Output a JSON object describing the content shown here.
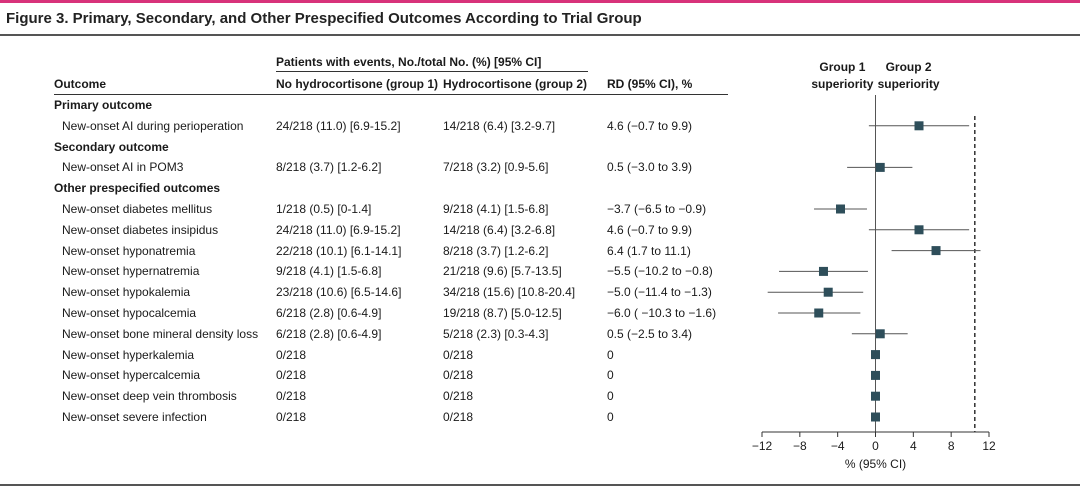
{
  "figure": {
    "title": "Figure 3. Primary, Secondary, and Other Prespecified Outcomes According to Trial Group"
  },
  "table": {
    "spanning_header": "Patients with events, No./total No. (%) [95% CI]",
    "col_outcome": "Outcome",
    "col_group1": "No hydrocortisone (group 1)",
    "col_group2": "Hydrocortisone (group 2)",
    "col_rd": "RD (95% CI), %",
    "sections": [
      {
        "title": "Primary outcome",
        "rows": [
          {
            "outcome": "New-onset AI during perioperation",
            "group1": "24/218 (11.0) [6.9-15.2]",
            "group2": "14/218 (6.4) [3.2-9.7]",
            "rd": "4.6 (−0.7 to 9.9)"
          }
        ]
      },
      {
        "title": "Secondary outcome",
        "rows": [
          {
            "outcome": "New-onset AI in POM3",
            "group1": "8/218 (3.7) [1.2-6.2]",
            "group2": "7/218 (3.2) [0.9-5.6]",
            "rd": "0.5 (−3.0 to 3.9)"
          }
        ]
      },
      {
        "title": "Other prespecified outcomes",
        "rows": [
          {
            "outcome": "New-onset diabetes mellitus",
            "group1": "1/218 (0.5) [0-1.4]",
            "group2": "9/218 (4.1) [1.5-6.8]",
            "rd": "−3.7 (−6.5 to −0.9)"
          },
          {
            "outcome": "New-onset diabetes insipidus",
            "group1": "24/218 (11.0) [6.9-15.2]",
            "group2": "14/218 (6.4) [3.2-6.8]",
            "rd": "4.6 (−0.7 to 9.9)"
          },
          {
            "outcome": "New-onset hyponatremia",
            "group1": "22/218 (10.1) [6.1-14.1]",
            "group2": "8/218 (3.7) [1.2-6.2]",
            "rd": "6.4 (1.7 to 11.1)"
          },
          {
            "outcome": "New-onset hypernatremia",
            "group1": "9/218 (4.1) [1.5-6.8]",
            "group2": "21/218 (9.6) [5.7-13.5]",
            "rd": "−5.5 (−10.2 to −0.8)"
          },
          {
            "outcome": "New-onset hypokalemia",
            "group1": "23/218 (10.6) [6.5-14.6]",
            "group2": "34/218 (15.6) [10.8-20.4]",
            "rd": "−5.0 (−11.4 to −1.3)"
          },
          {
            "outcome": "New-onset hypocalcemia",
            "group1": "6/218 (2.8) [0.6-4.9]",
            "group2": "19/218 (8.7) [5.0-12.5]",
            "rd": "−6.0 ( −10.3 to −1.6)"
          },
          {
            "outcome": "New-onset bone mineral density loss",
            "group1": "6/218 (2.8) [0.6-4.9]",
            "group2": "5/218 (2.3) [0.3-4.3]",
            "rd": "0.5 (−2.5 to 3.4)"
          },
          {
            "outcome": "New-onset hyperkalemia",
            "group1": "0/218",
            "group2": "0/218",
            "rd": "0"
          },
          {
            "outcome": "New-onset hypercalcemia",
            "group1": "0/218",
            "group2": "0/218",
            "rd": "0"
          },
          {
            "outcome": "New-onset deep vein thrombosis",
            "group1": "0/218",
            "group2": "0/218",
            "rd": "0"
          },
          {
            "outcome": "New-onset severe infection",
            "group1": "0/218",
            "group2": "0/218",
            "rd": "0"
          }
        ]
      }
    ]
  },
  "chart_data": {
    "type": "scatter",
    "subtype": "forest-plot",
    "xlabel": "% (95% CI)",
    "xlim": [
      -12,
      12
    ],
    "xticks": [
      -12,
      -8,
      -4,
      0,
      4,
      8,
      12
    ],
    "favors_left": [
      "Group 1",
      "superiority"
    ],
    "favors_right": [
      "Group 2",
      "superiority"
    ],
    "reference_line": 0,
    "dashed_line": 10.5,
    "marker_color": "#2e4e5a",
    "points": [
      {
        "label": "New-onset AI during perioperation",
        "estimate": 4.6,
        "lower": -0.7,
        "upper": 9.9
      },
      {
        "label": "New-onset AI in POM3",
        "estimate": 0.5,
        "lower": -3.0,
        "upper": 3.9
      },
      {
        "label": "New-onset diabetes mellitus",
        "estimate": -3.7,
        "lower": -6.5,
        "upper": -0.9
      },
      {
        "label": "New-onset diabetes insipidus",
        "estimate": 4.6,
        "lower": -0.7,
        "upper": 9.9
      },
      {
        "label": "New-onset hyponatremia",
        "estimate": 6.4,
        "lower": 1.7,
        "upper": 11.1
      },
      {
        "label": "New-onset hypernatremia",
        "estimate": -5.5,
        "lower": -10.2,
        "upper": -0.8
      },
      {
        "label": "New-onset hypokalemia",
        "estimate": -5.0,
        "lower": -11.4,
        "upper": -1.3
      },
      {
        "label": "New-onset hypocalcemia",
        "estimate": -6.0,
        "lower": -10.3,
        "upper": -1.6
      },
      {
        "label": "New-onset bone mineral density loss",
        "estimate": 0.5,
        "lower": -2.5,
        "upper": 3.4
      },
      {
        "label": "New-onset hyperkalemia",
        "estimate": 0,
        "lower": 0,
        "upper": 0
      },
      {
        "label": "New-onset hypercalcemia",
        "estimate": 0,
        "lower": 0,
        "upper": 0
      },
      {
        "label": "New-onset deep vein thrombosis",
        "estimate": 0,
        "lower": 0,
        "upper": 0
      },
      {
        "label": "New-onset severe infection",
        "estimate": 0,
        "lower": 0,
        "upper": 0
      }
    ]
  }
}
